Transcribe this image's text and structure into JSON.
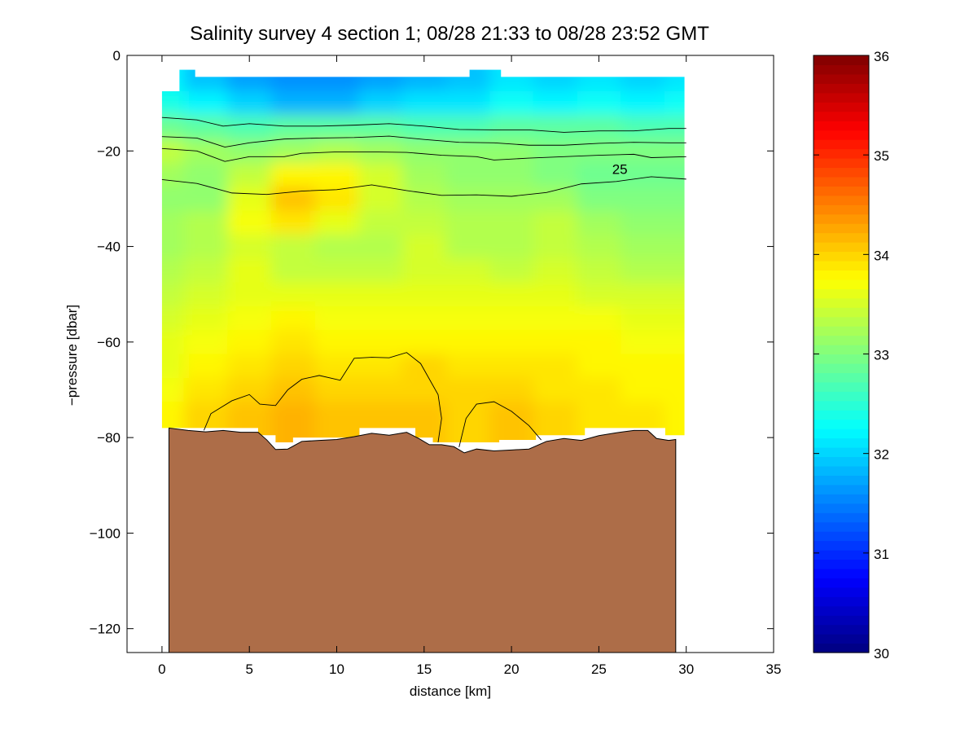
{
  "chart_data": {
    "type": "heatmap",
    "title": "Salinity survey 4 section 1; 08/28 21:33 to 08/28 23:52 GMT",
    "xlabel": "distance [km]",
    "ylabel": "−pressure [dbar]",
    "xlim": [
      -2,
      35
    ],
    "ylim": [
      -125,
      0
    ],
    "xticks": [
      0,
      5,
      10,
      15,
      20,
      25,
      30,
      35
    ],
    "yticks": [
      -120,
      -100,
      -80,
      -60,
      -40,
      -20,
      0
    ],
    "xtick_labels": [
      "0",
      "5",
      "10",
      "15",
      "20",
      "25",
      "30",
      "35"
    ],
    "ytick_labels": [
      "−120",
      "−100",
      "−80",
      "−60",
      "−40",
      "−20",
      "0"
    ],
    "colorbar": {
      "range": [
        30,
        36
      ],
      "ticks": [
        30,
        31,
        32,
        33,
        34,
        35,
        36
      ],
      "tick_labels": [
        "30",
        "31",
        "32",
        "33",
        "34",
        "35",
        "36"
      ],
      "colormap": "jet"
    },
    "grid": false,
    "salinity_field": {
      "x_km": [
        0,
        2.5,
        5,
        7.5,
        10,
        12.5,
        15,
        17.5,
        20,
        22.5,
        25,
        27.5,
        30
      ],
      "depth_dbar": [
        -5,
        -10,
        -15,
        -20,
        -25,
        -30,
        -35,
        -40,
        -45,
        -50,
        -55,
        -60,
        -65,
        -70,
        -75,
        -80
      ],
      "values": [
        [
          32.2,
          31.9,
          31.7,
          31.6,
          31.6,
          31.7,
          31.8,
          31.9,
          32.1,
          32.0,
          32.1,
          32.0,
          32.1
        ],
        [
          32.4,
          32.2,
          32.0,
          31.8,
          31.8,
          32.0,
          32.1,
          32.1,
          32.3,
          32.2,
          32.3,
          32.2,
          32.3
        ],
        [
          32.9,
          32.8,
          32.7,
          32.8,
          32.8,
          32.8,
          32.7,
          32.7,
          32.8,
          32.8,
          32.8,
          32.7,
          32.7
        ],
        [
          33.4,
          33.2,
          33.1,
          33.2,
          33.3,
          33.2,
          33.1,
          33.1,
          33.1,
          33.0,
          33.0,
          33.0,
          33.0
        ],
        [
          33.2,
          33.1,
          33.4,
          33.8,
          33.8,
          33.5,
          33.2,
          33.1,
          33.1,
          33.0,
          32.9,
          32.9,
          32.9
        ],
        [
          33.1,
          33.1,
          33.6,
          34.1,
          33.9,
          33.5,
          33.3,
          33.2,
          33.2,
          33.2,
          33.0,
          33.0,
          33.0
        ],
        [
          33.2,
          33.3,
          33.7,
          33.9,
          33.6,
          33.4,
          33.4,
          33.3,
          33.3,
          33.4,
          33.2,
          33.1,
          33.1
        ],
        [
          33.2,
          33.3,
          33.5,
          33.4,
          33.3,
          33.3,
          33.5,
          33.3,
          33.3,
          33.4,
          33.3,
          33.2,
          33.2
        ],
        [
          33.3,
          33.4,
          33.6,
          33.4,
          33.4,
          33.4,
          33.5,
          33.5,
          33.4,
          33.5,
          33.4,
          33.3,
          33.3
        ],
        [
          33.4,
          33.5,
          33.6,
          33.6,
          33.6,
          33.6,
          33.6,
          33.6,
          33.6,
          33.6,
          33.5,
          33.5,
          33.5
        ],
        [
          33.5,
          33.6,
          33.7,
          33.8,
          33.7,
          33.7,
          33.7,
          33.7,
          33.7,
          33.7,
          33.7,
          33.6,
          33.6
        ],
        [
          33.6,
          33.7,
          33.8,
          33.9,
          33.8,
          33.8,
          33.8,
          33.8,
          33.8,
          33.8,
          33.8,
          33.7,
          33.7
        ],
        [
          33.6,
          33.8,
          33.9,
          34.0,
          33.9,
          33.9,
          34.0,
          33.9,
          33.9,
          33.9,
          33.8,
          33.8,
          33.8
        ],
        [
          33.7,
          33.9,
          34.0,
          34.1,
          34.0,
          34.0,
          34.0,
          34.0,
          34.0,
          33.9,
          33.9,
          33.8,
          33.8
        ],
        [
          33.8,
          34.0,
          34.1,
          34.2,
          34.1,
          34.1,
          34.1,
          34.0,
          34.1,
          34.0,
          33.9,
          33.9,
          33.8
        ],
        [
          33.8,
          34.0,
          34.1,
          34.2,
          34.1,
          34.1,
          34.1,
          34.0,
          34.1,
          34.0,
          33.9,
          33.9,
          33.8
        ]
      ]
    },
    "data_top_edge": [
      {
        "x": 0,
        "y": -7.5
      },
      {
        "x": 1,
        "y": -7.5
      },
      {
        "x": 1,
        "y": -3
      },
      {
        "x": 1.9,
        "y": -3
      },
      {
        "x": 1.9,
        "y": -4.5
      },
      {
        "x": 17.6,
        "y": -4.5
      },
      {
        "x": 17.6,
        "y": -3
      },
      {
        "x": 19.4,
        "y": -3
      },
      {
        "x": 19.4,
        "y": -4.5
      },
      {
        "x": 29.9,
        "y": -4.5
      }
    ],
    "data_bottom_edge": [
      {
        "x": 0,
        "y": -78
      },
      {
        "x": 5.5,
        "y": -78
      },
      {
        "x": 5.5,
        "y": -79.5
      },
      {
        "x": 6.5,
        "y": -79.5
      },
      {
        "x": 6.5,
        "y": -81
      },
      {
        "x": 7.5,
        "y": -81
      },
      {
        "x": 7.5,
        "y": -80
      },
      {
        "x": 11.3,
        "y": -80
      },
      {
        "x": 11.3,
        "y": -78
      },
      {
        "x": 14.5,
        "y": -78
      },
      {
        "x": 14.5,
        "y": -80
      },
      {
        "x": 15.5,
        "y": -80
      },
      {
        "x": 15.5,
        "y": -81
      },
      {
        "x": 19.3,
        "y": -81
      },
      {
        "x": 19.3,
        "y": -80.5
      },
      {
        "x": 21.4,
        "y": -80.5
      },
      {
        "x": 21.4,
        "y": -79.5
      },
      {
        "x": 24.2,
        "y": -79.5
      },
      {
        "x": 24.2,
        "y": -78
      },
      {
        "x": 28.8,
        "y": -78
      },
      {
        "x": 28.8,
        "y": -79.5
      },
      {
        "x": 29.9,
        "y": -79.5
      }
    ],
    "seafloor": {
      "color": "#ad6d48",
      "bottom_depth": -125,
      "profile": [
        {
          "x": 0.4,
          "y": -78
        },
        {
          "x": 1.5,
          "y": -78.5
        },
        {
          "x": 2.5,
          "y": -78.8
        },
        {
          "x": 3.5,
          "y": -78.5
        },
        {
          "x": 4.5,
          "y": -78.9
        },
        {
          "x": 5.5,
          "y": -78.9
        },
        {
          "x": 6.0,
          "y": -80.5
        },
        {
          "x": 6.5,
          "y": -82.5
        },
        {
          "x": 7.2,
          "y": -82.4
        },
        {
          "x": 8.0,
          "y": -80.8
        },
        {
          "x": 9.0,
          "y": -80.6
        },
        {
          "x": 10.0,
          "y": -80.4
        },
        {
          "x": 11.0,
          "y": -79.8
        },
        {
          "x": 12.0,
          "y": -79.1
        },
        {
          "x": 13.0,
          "y": -79.5
        },
        {
          "x": 14.0,
          "y": -78.9
        },
        {
          "x": 14.7,
          "y": -80.2
        },
        {
          "x": 15.3,
          "y": -81.5
        },
        {
          "x": 16.0,
          "y": -81.5
        },
        {
          "x": 16.7,
          "y": -81.9
        },
        {
          "x": 17.3,
          "y": -83.2
        },
        {
          "x": 18.0,
          "y": -82.4
        },
        {
          "x": 19.0,
          "y": -82.8
        },
        {
          "x": 20.0,
          "y": -82.6
        },
        {
          "x": 21.0,
          "y": -82.4
        },
        {
          "x": 22.0,
          "y": -80.8
        },
        {
          "x": 23.0,
          "y": -80.2
        },
        {
          "x": 24.0,
          "y": -80.6
        },
        {
          "x": 25.0,
          "y": -79.6
        },
        {
          "x": 26.0,
          "y": -79.0
        },
        {
          "x": 27.0,
          "y": -78.5
        },
        {
          "x": 27.8,
          "y": -78.5
        },
        {
          "x": 28.3,
          "y": -80.2
        },
        {
          "x": 29.0,
          "y": -80.6
        },
        {
          "x": 29.4,
          "y": -80.4
        }
      ]
    },
    "contours": [
      {
        "label": "",
        "points": [
          {
            "x": 0,
            "y": -13
          },
          {
            "x": 2,
            "y": -13.5
          },
          {
            "x": 3.5,
            "y": -14.8
          },
          {
            "x": 5,
            "y": -14.3
          },
          {
            "x": 7,
            "y": -14.8
          },
          {
            "x": 9,
            "y": -14.8
          },
          {
            "x": 11,
            "y": -14.6
          },
          {
            "x": 13,
            "y": -14.3
          },
          {
            "x": 15,
            "y": -14.8
          },
          {
            "x": 17,
            "y": -15.5
          },
          {
            "x": 19,
            "y": -15.6
          },
          {
            "x": 21,
            "y": -15.6
          },
          {
            "x": 23,
            "y": -16.1
          },
          {
            "x": 25,
            "y": -15.8
          },
          {
            "x": 27,
            "y": -15.8
          },
          {
            "x": 29,
            "y": -15.3
          },
          {
            "x": 30,
            "y": -15.3
          }
        ]
      },
      {
        "label": "",
        "points": [
          {
            "x": 0,
            "y": -17
          },
          {
            "x": 2,
            "y": -17.3
          },
          {
            "x": 3.6,
            "y": -19.2
          },
          {
            "x": 5,
            "y": -18.3
          },
          {
            "x": 7,
            "y": -17.5
          },
          {
            "x": 9,
            "y": -17.3
          },
          {
            "x": 11,
            "y": -17.2
          },
          {
            "x": 13,
            "y": -16.9
          },
          {
            "x": 15,
            "y": -17.6
          },
          {
            "x": 17,
            "y": -18.2
          },
          {
            "x": 19,
            "y": -18.3
          },
          {
            "x": 21,
            "y": -18.8
          },
          {
            "x": 23,
            "y": -18.8
          },
          {
            "x": 25,
            "y": -18.4
          },
          {
            "x": 27,
            "y": -18.2
          },
          {
            "x": 29,
            "y": -18.3
          },
          {
            "x": 30,
            "y": -18.3
          }
        ]
      },
      {
        "label": "",
        "points": [
          {
            "x": 0,
            "y": -19.5
          },
          {
            "x": 2,
            "y": -20
          },
          {
            "x": 3.6,
            "y": -22.2
          },
          {
            "x": 5,
            "y": -21.2
          },
          {
            "x": 7,
            "y": -21.2
          },
          {
            "x": 8,
            "y": -20.5
          },
          {
            "x": 10,
            "y": -20.2
          },
          {
            "x": 12,
            "y": -20.2
          },
          {
            "x": 14,
            "y": -20.3
          },
          {
            "x": 16,
            "y": -20.9
          },
          {
            "x": 18,
            "y": -21.2
          },
          {
            "x": 19,
            "y": -21.9
          },
          {
            "x": 21,
            "y": -21.5
          },
          {
            "x": 23,
            "y": -21.2
          },
          {
            "x": 25,
            "y": -20.9
          },
          {
            "x": 27,
            "y": -20.7
          },
          {
            "x": 28,
            "y": -21.4
          },
          {
            "x": 30,
            "y": -21.2
          }
        ]
      },
      {
        "label": "25",
        "points": [
          {
            "x": 0,
            "y": -26
          },
          {
            "x": 2,
            "y": -26.8
          },
          {
            "x": 4,
            "y": -28.8
          },
          {
            "x": 6,
            "y": -29.1
          },
          {
            "x": 8,
            "y": -28.4
          },
          {
            "x": 10,
            "y": -28.1
          },
          {
            "x": 12,
            "y": -27.1
          },
          {
            "x": 14,
            "y": -28.3
          },
          {
            "x": 16,
            "y": -29.3
          },
          {
            "x": 18,
            "y": -29.2
          },
          {
            "x": 20,
            "y": -29.5
          },
          {
            "x": 22,
            "y": -28.7
          },
          {
            "x": 24,
            "y": -26.9
          },
          {
            "x": 26,
            "y": -26.4
          },
          {
            "x": 28,
            "y": -25.4
          },
          {
            "x": 30,
            "y": -25.9
          }
        ],
        "label_at": {
          "x": 26.2,
          "y": -24.8
        }
      },
      {
        "label": "",
        "points": [
          {
            "x": 2.4,
            "y": -78.5
          },
          {
            "x": 2.8,
            "y": -75
          },
          {
            "x": 4,
            "y": -72.3
          },
          {
            "x": 5,
            "y": -71
          },
          {
            "x": 5.6,
            "y": -73
          },
          {
            "x": 6.5,
            "y": -73.3
          },
          {
            "x": 7.2,
            "y": -70
          },
          {
            "x": 8,
            "y": -67.8
          },
          {
            "x": 9,
            "y": -67
          },
          {
            "x": 10.2,
            "y": -68
          },
          {
            "x": 11,
            "y": -63.4
          },
          {
            "x": 12,
            "y": -63.2
          },
          {
            "x": 13,
            "y": -63.3
          },
          {
            "x": 14,
            "y": -62.2
          },
          {
            "x": 14.8,
            "y": -64.5
          },
          {
            "x": 15.8,
            "y": -71
          },
          {
            "x": 16.0,
            "y": -76
          },
          {
            "x": 15.8,
            "y": -81
          }
        ]
      },
      {
        "label": "",
        "points": [
          {
            "x": 17.0,
            "y": -82
          },
          {
            "x": 17.4,
            "y": -76
          },
          {
            "x": 18.0,
            "y": -73
          },
          {
            "x": 19.0,
            "y": -72.5
          },
          {
            "x": 20.0,
            "y": -74.5
          },
          {
            "x": 21.0,
            "y": -77.5
          },
          {
            "x": 21.7,
            "y": -80.5
          }
        ]
      }
    ]
  }
}
